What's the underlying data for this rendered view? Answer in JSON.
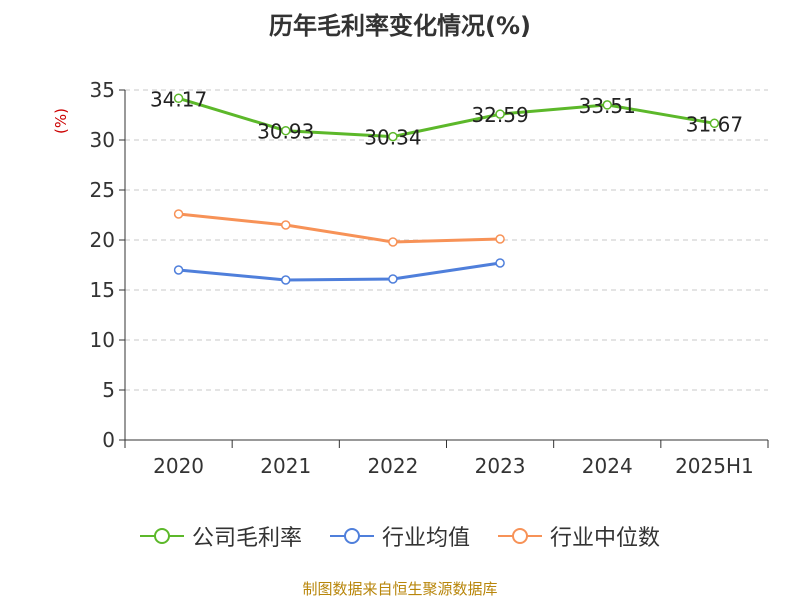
{
  "title": "历年毛利率变化情况(%)",
  "source": "制图数据来自恒生聚源数据库",
  "chart_data": {
    "type": "line",
    "categories": [
      "2020",
      "2021",
      "2022",
      "2023",
      "2024",
      "2025H1"
    ],
    "unit_label": "(%)",
    "ylim": [
      0,
      35
    ],
    "yticks": [
      0,
      5,
      10,
      15,
      20,
      25,
      30,
      35
    ],
    "grid": true,
    "legend_position": "bottom",
    "series": [
      {
        "name": "公司毛利率",
        "color": "#5cb82a",
        "values": [
          34.17,
          30.93,
          30.34,
          32.59,
          33.51,
          31.67
        ],
        "labels": [
          "34.17",
          "30.93",
          "30.34",
          "32.59",
          "33.51",
          "31.67"
        ]
      },
      {
        "name": "行业均值",
        "color": "#4f7fdb",
        "values": [
          17.0,
          16.0,
          16.1,
          17.7,
          null,
          null
        ]
      },
      {
        "name": "行业中位数",
        "color": "#f79257",
        "values": [
          22.6,
          21.5,
          19.8,
          20.1,
          null,
          null
        ]
      }
    ]
  }
}
